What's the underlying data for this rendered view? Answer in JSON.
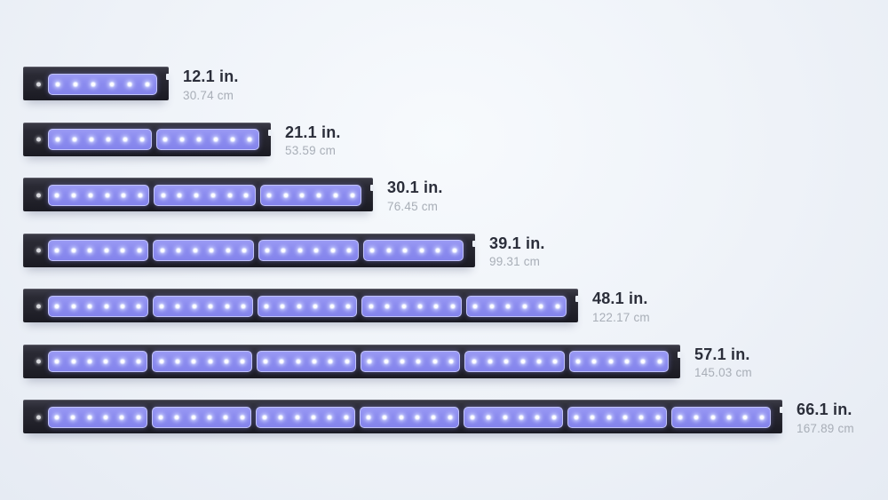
{
  "diagram": {
    "description_colors": {
      "housing": "#23232c",
      "housing_bevel": "#5f5f6a",
      "module_fill": "#8b8bef",
      "module_border": "#c2c4f9",
      "led_dot": "#ffffff",
      "indicator_dot": "#d7d8dc",
      "label_primary": "#2b2e3a",
      "label_secondary": "#a8aeb7",
      "background": "#edf1f7"
    },
    "bars": [
      {
        "inches": 12.1,
        "inches_label": "12.1 in.",
        "cm_label": "30.74 cm",
        "modules": 1,
        "leds_per_module": 6
      },
      {
        "inches": 21.1,
        "inches_label": "21.1 in.",
        "cm_label": "53.59 cm",
        "modules": 2,
        "leds_per_module": 6
      },
      {
        "inches": 30.1,
        "inches_label": "30.1 in.",
        "cm_label": "76.45 cm",
        "modules": 3,
        "leds_per_module": 6
      },
      {
        "inches": 39.1,
        "inches_label": "39.1 in.",
        "cm_label": "99.31 cm",
        "modules": 4,
        "leds_per_module": 6
      },
      {
        "inches": 48.1,
        "inches_label": "48.1 in.",
        "cm_label": "122.17 cm",
        "modules": 5,
        "leds_per_module": 6
      },
      {
        "inches": 57.1,
        "inches_label": "57.1 in.",
        "cm_label": "145.03 cm",
        "modules": 6,
        "leds_per_module": 6
      },
      {
        "inches": 66.1,
        "inches_label": "66.1 in.",
        "cm_label": "167.89 cm",
        "modules": 7,
        "leds_per_module": 6
      }
    ]
  }
}
